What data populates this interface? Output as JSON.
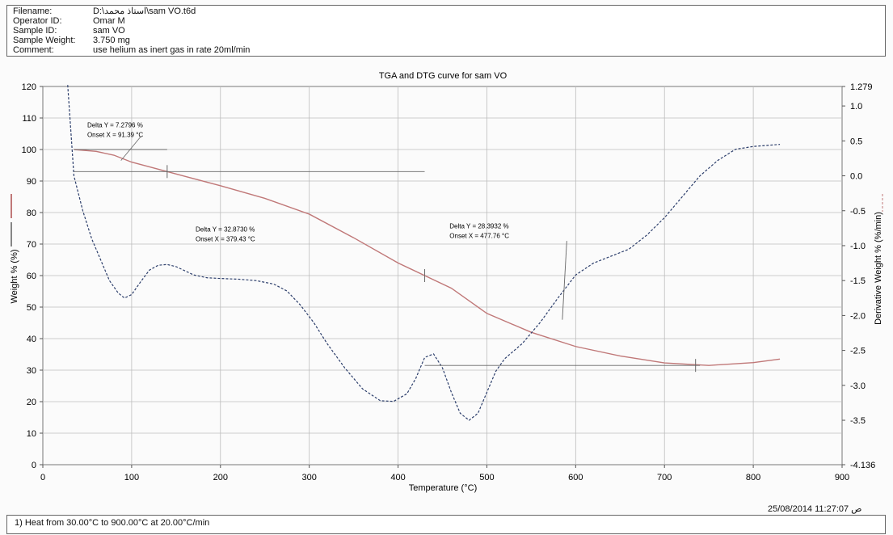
{
  "header": {
    "filename_label": "Filename:",
    "filename_value": "D:\\استاذ محمد\\sam VO.t6d",
    "operator_label": "Operator ID:",
    "operator_value": "Omar M",
    "sample_label": "Sample ID:",
    "sample_value": "sam VO",
    "weight_label": "Sample Weight:",
    "weight_value": "3.750 mg",
    "comment_label": "Comment:",
    "comment_value": "use helium as inert gas in rate 20ml/min"
  },
  "footer": {
    "method": "1) Heat from 30.00°C to 900.00°C at 20.00°C/min",
    "timestamp": "25/08/2014 11:27:07 ص"
  },
  "colors": {
    "tga": "#c07878",
    "dtg": "#2c3e6b",
    "grid": "#bdbdbd",
    "marker": "#666666"
  },
  "chart_data": {
    "type": "line",
    "title": "TGA and DTG curve for sam VO",
    "xlabel": "Temperature (°C)",
    "ylabel": "Weight % (%)",
    "y2label": "Derivative Weight % (%/min)",
    "xlim": [
      0,
      900
    ],
    "ylim": [
      0,
      120
    ],
    "y2lim": [
      -4.136,
      1.279
    ],
    "x_ticks": [
      "0",
      "100",
      "200",
      "300",
      "400",
      "500",
      "600",
      "700",
      "800",
      "900"
    ],
    "y_ticks": [
      "0",
      "10",
      "20",
      "30",
      "40",
      "50",
      "60",
      "70",
      "80",
      "90",
      "100",
      "110",
      "120"
    ],
    "y2_ticks": [
      "1.279",
      "1.0",
      "0.5",
      "0.0",
      "-0.5",
      "-1.0",
      "-1.5",
      "-2.0",
      "-2.5",
      "-3.0",
      "-3.5",
      "-4.136"
    ],
    "grid": true,
    "series": [
      {
        "name": "Weight % (%)",
        "axis": "left",
        "x": [
          35,
          60,
          80,
          100,
          120,
          140,
          160,
          200,
          250,
          300,
          350,
          400,
          430,
          460,
          480,
          500,
          550,
          600,
          650,
          700,
          750,
          800,
          830
        ],
        "y": [
          100,
          99.4,
          98.2,
          96,
          94.5,
          93,
          91.5,
          88.5,
          84.5,
          79.5,
          72,
          64,
          60,
          56,
          52,
          48,
          42,
          37.5,
          34.5,
          32.3,
          31.5,
          32.4,
          33.5
        ]
      },
      {
        "name": "Derivative Weight % (%/min)",
        "axis": "right",
        "x": [
          28,
          35,
          45,
          55,
          65,
          75,
          85,
          92,
          100,
          110,
          120,
          130,
          140,
          150,
          160,
          170,
          185,
          200,
          220,
          240,
          260,
          275,
          290,
          305,
          320,
          340,
          360,
          380,
          395,
          410,
          420,
          430,
          440,
          450,
          460,
          470,
          480,
          490,
          500,
          510,
          520,
          540,
          560,
          580,
          600,
          620,
          640,
          660,
          680,
          700,
          720,
          740,
          760,
          780,
          800,
          830
        ],
        "y": [
          1.3,
          0.0,
          -0.5,
          -0.9,
          -1.2,
          -1.5,
          -1.68,
          -1.75,
          -1.7,
          -1.52,
          -1.35,
          -1.28,
          -1.27,
          -1.3,
          -1.36,
          -1.42,
          -1.46,
          -1.47,
          -1.48,
          -1.5,
          -1.55,
          -1.65,
          -1.85,
          -2.1,
          -2.4,
          -2.75,
          -3.05,
          -3.22,
          -3.23,
          -3.12,
          -2.9,
          -2.6,
          -2.55,
          -2.75,
          -3.1,
          -3.4,
          -3.5,
          -3.4,
          -3.1,
          -2.8,
          -2.62,
          -2.4,
          -2.1,
          -1.75,
          -1.42,
          -1.25,
          -1.15,
          -1.05,
          -0.85,
          -0.6,
          -0.3,
          0.0,
          0.22,
          0.38,
          0.42,
          0.45
        ]
      }
    ],
    "annotations": [
      {
        "delta": "Delta Y = 7.2796 %",
        "onset": "Onset X = 91.39 °C",
        "x": 50,
        "y": 107
      },
      {
        "delta": "Delta Y = 32.8730 %",
        "onset": "Onset X = 379.43 °C",
        "x": 172,
        "y": 74
      },
      {
        "delta": "Delta Y = 28.3932 %",
        "onset": "Onset X = 477.76 °C",
        "x": 458,
        "y": 75
      }
    ]
  }
}
